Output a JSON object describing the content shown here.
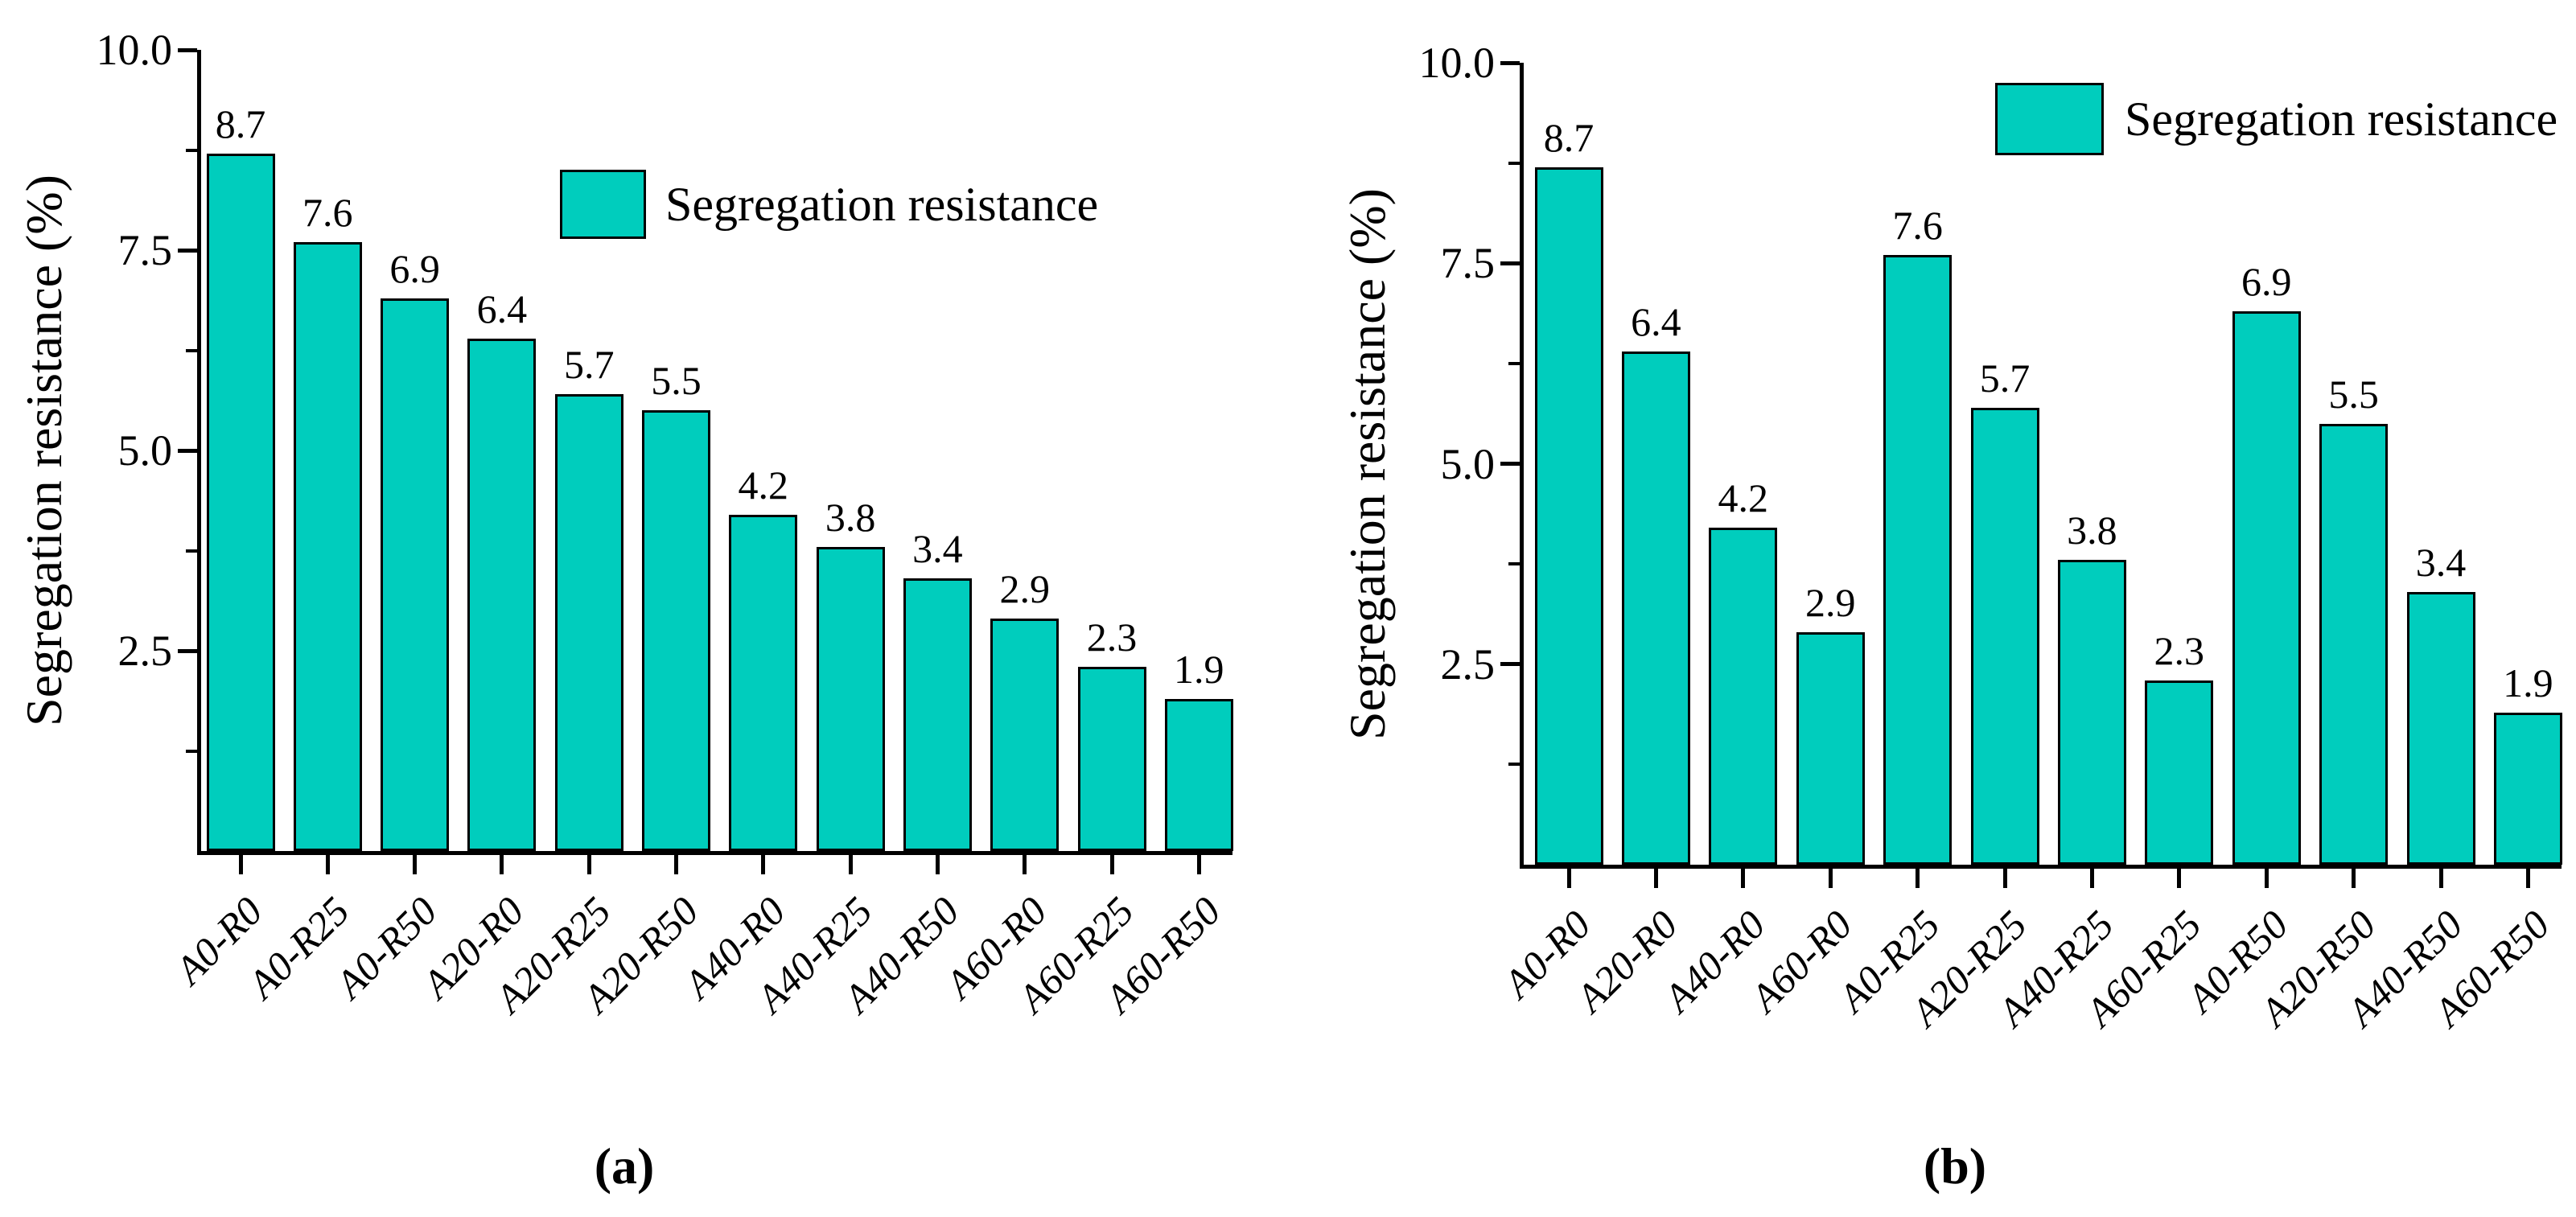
{
  "chart_data": [
    {
      "type": "bar",
      "caption": "(a)",
      "ylabel": "Segregation resistance (%)",
      "xlabel": "",
      "categories": [
        "A0-R0",
        "A0-R25",
        "A0-R50",
        "A20-R0",
        "A20-R25",
        "A20-R50",
        "A40-R0",
        "A40-R25",
        "A40-R50",
        "A60-R0",
        "A60-R25",
        "A60-R50"
      ],
      "values": [
        8.7,
        7.6,
        6.9,
        6.4,
        5.7,
        5.5,
        4.2,
        3.8,
        3.4,
        2.9,
        2.3,
        1.9
      ],
      "legend": [
        "Segregation resistance"
      ],
      "legend_position": "top-center-inside",
      "ylim": [
        0,
        10
      ],
      "ytick_values": [
        2.5,
        5,
        7.5,
        10
      ],
      "ytick_labels": [
        "2.5",
        "5.0",
        "7.5",
        "10.0"
      ],
      "minor_ytick_values": [
        1.25,
        3.75,
        6.25,
        8.75
      ],
      "bar_color": "#00cdbd",
      "bar_edge_color": "#000000",
      "grid": false
    },
    {
      "type": "bar",
      "caption": "(b)",
      "ylabel": "Segregation resistance (%)",
      "xlabel": "",
      "categories": [
        "A0-R0",
        "A20-R0",
        "A40-R0",
        "A60-R0",
        "A0-R25",
        "A20-R25",
        "A40-R25",
        "A60-R25",
        "A0-R50",
        "A20-R50",
        "A40-R50",
        "A60-R50"
      ],
      "values": [
        8.7,
        6.4,
        4.2,
        2.9,
        7.6,
        5.7,
        3.8,
        2.3,
        6.9,
        5.5,
        3.4,
        1.9
      ],
      "legend": [
        "Segregation resistance"
      ],
      "legend_position": "top-right-inside",
      "ylim": [
        0,
        10
      ],
      "ytick_values": [
        2.5,
        5,
        7.5,
        10
      ],
      "ytick_labels": [
        "2.5",
        "5.0",
        "7.5",
        "10.0"
      ],
      "minor_ytick_values": [
        1.25,
        3.75,
        6.25,
        8.75
      ],
      "bar_color": "#00cdbd",
      "bar_edge_color": "#000000",
      "grid": false
    }
  ]
}
